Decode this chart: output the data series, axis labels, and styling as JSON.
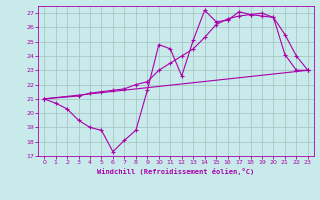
{
  "xlabel": "Windchill (Refroidissement éolien,°C)",
  "background_color": "#c8eaea",
  "grid_color": "#a8c8c8",
  "line_color": "#aa00aa",
  "xlim": [
    -0.5,
    23.5
  ],
  "ylim": [
    17,
    27.5
  ],
  "xticks": [
    0,
    1,
    2,
    3,
    4,
    5,
    6,
    7,
    8,
    9,
    10,
    11,
    12,
    13,
    14,
    15,
    16,
    17,
    18,
    19,
    20,
    21,
    22,
    23
  ],
  "yticks": [
    17,
    18,
    19,
    20,
    21,
    22,
    23,
    24,
    25,
    26,
    27
  ],
  "line1_x": [
    0,
    1,
    2,
    3,
    4,
    5,
    6,
    7,
    8,
    9,
    10,
    11,
    12,
    13,
    14,
    15,
    16,
    17,
    18,
    19,
    20,
    21,
    22,
    23
  ],
  "line1_y": [
    21.0,
    20.7,
    20.3,
    19.5,
    19.0,
    18.8,
    17.3,
    18.1,
    18.8,
    21.6,
    24.8,
    24.5,
    22.6,
    25.1,
    27.2,
    26.4,
    26.5,
    27.1,
    26.9,
    26.8,
    26.7,
    24.1,
    23.0,
    23.0
  ],
  "line2_x": [
    0,
    3,
    4,
    5,
    6,
    7,
    8,
    9,
    10,
    11,
    12,
    13,
    14,
    15,
    16,
    17,
    18,
    19,
    20,
    21,
    22,
    23
  ],
  "line2_y": [
    21.0,
    21.2,
    21.4,
    21.5,
    21.6,
    21.7,
    22.0,
    22.2,
    23.0,
    23.5,
    24.0,
    24.5,
    25.3,
    26.2,
    26.6,
    26.8,
    26.9,
    27.0,
    26.7,
    25.5,
    24.0,
    23.0
  ],
  "line3_x": [
    0,
    23
  ],
  "line3_y": [
    21.0,
    23.0
  ]
}
